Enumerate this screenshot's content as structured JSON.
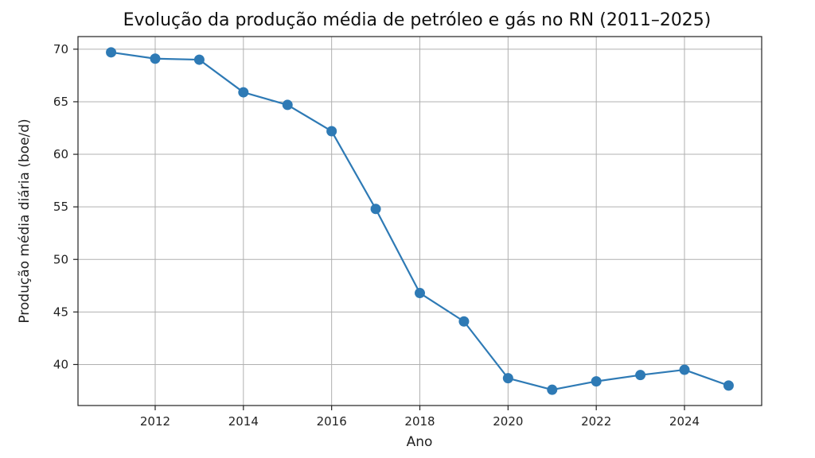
{
  "chart_data": {
    "type": "line",
    "title": "Evolução da produção média de petróleo e gás no RN (2011–2025)",
    "xlabel": "Ano",
    "ylabel": "Produção média diária (boe/d)",
    "x": [
      2011,
      2012,
      2013,
      2014,
      2015,
      2016,
      2017,
      2018,
      2019,
      2020,
      2021,
      2022,
      2023,
      2024,
      2025
    ],
    "series": [
      {
        "values": [
          69.7,
          69.1,
          69.0,
          65.9,
          64.7,
          62.2,
          54.8,
          46.8,
          44.1,
          38.7,
          37.6,
          38.4,
          39.0,
          39.5,
          38.0
        ],
        "color": "#2e7ab5"
      }
    ],
    "xlim": [
      2010.25,
      2025.75
    ],
    "ylim": [
      36.1,
      71.2
    ],
    "x_ticks": [
      2012,
      2014,
      2016,
      2018,
      2020,
      2022,
      2024
    ],
    "y_ticks": [
      40,
      45,
      50,
      55,
      60,
      65,
      70
    ],
    "x_tick_labels": [
      "2012",
      "2014",
      "2016",
      "2018",
      "2020",
      "2022",
      "2024"
    ],
    "y_tick_labels": [
      "40",
      "45",
      "50",
      "55",
      "60",
      "65",
      "70"
    ],
    "grid": true,
    "markers": "circle"
  }
}
